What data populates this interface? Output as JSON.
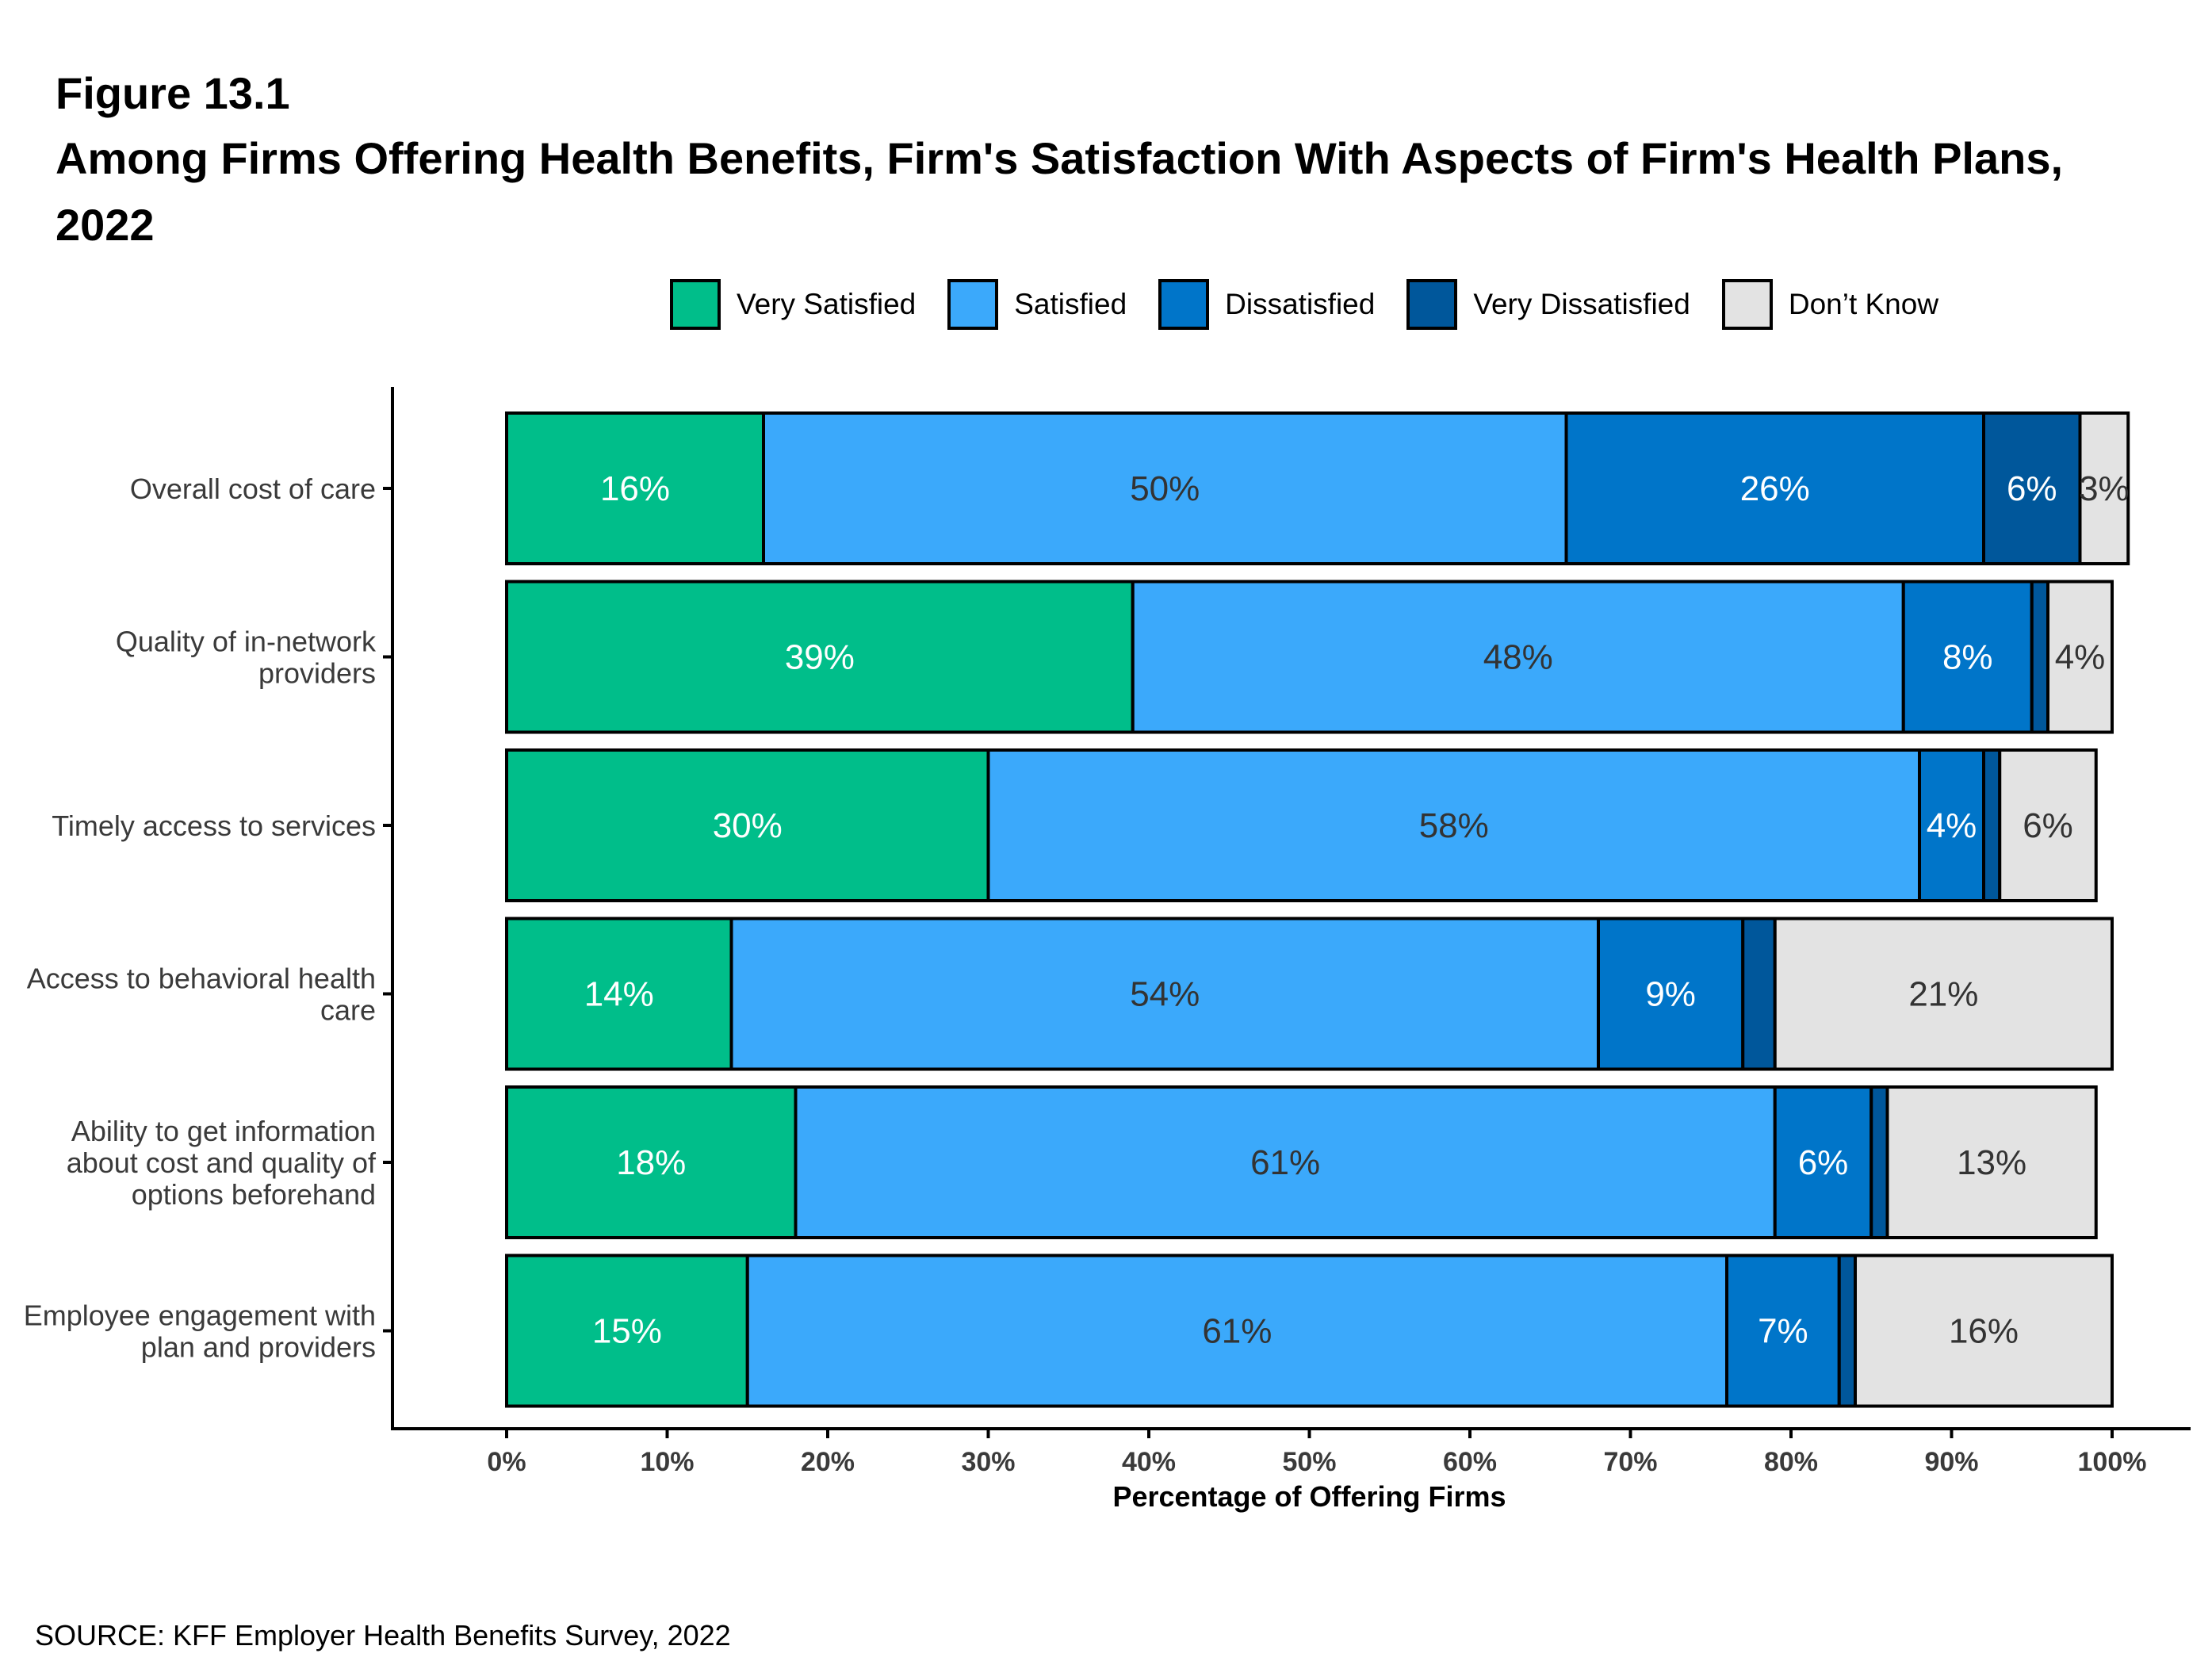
{
  "figure_label": "Figure 13.1",
  "title": "Among Firms Offering Health Benefits, Firm's Satisfaction With Aspects of Firm's Health Plans, 2022",
  "source": "SOURCE: KFF Employer Health Benefits Survey, 2022",
  "chart_data": {
    "type": "bar",
    "orientation": "horizontal",
    "stacked": true,
    "categories": [
      "Overall cost of care",
      "Quality of in-network providers",
      "Timely access to services",
      "Access to behavioral health care",
      "Ability to get information about cost and quality of options beforehand",
      "Employee engagement with plan and providers"
    ],
    "category_label_lines": [
      [
        "Overall cost of care"
      ],
      [
        "Quality of in-network",
        "providers"
      ],
      [
        "Timely access to services"
      ],
      [
        "Access to behavioral health",
        "care"
      ],
      [
        "Ability to get information",
        "about cost and quality of",
        "options beforehand"
      ],
      [
        "Employee engagement with",
        "plan and providers"
      ]
    ],
    "series": [
      {
        "name": "Very Satisfied",
        "color": "#00BE8A",
        "label_color": "#ffffff",
        "values": [
          16,
          39,
          30,
          14,
          18,
          15
        ],
        "labels": [
          "16%",
          "39%",
          "30%",
          "14%",
          "18%",
          "15%"
        ]
      },
      {
        "name": "Satisfied",
        "color": "#3BA9FB",
        "label_color": "#333333",
        "values": [
          50,
          48,
          58,
          54,
          61,
          61
        ],
        "labels": [
          "50%",
          "48%",
          "58%",
          "54%",
          "61%",
          "61%"
        ]
      },
      {
        "name": "Dissatisfied",
        "color": "#0075C9",
        "label_color": "#ffffff",
        "values": [
          26,
          8,
          4,
          9,
          6,
          7
        ],
        "labels": [
          "26%",
          "8%",
          "4%",
          "9%",
          "6%",
          "7%"
        ]
      },
      {
        "name": "Very Dissatisfied",
        "color": "#00579B",
        "label_color": "#ffffff",
        "values": [
          6,
          1,
          1,
          2,
          1,
          1
        ],
        "labels": [
          "6%",
          "",
          "",
          "",
          "",
          ""
        ]
      },
      {
        "name": "Don’t Know",
        "color": "#E3E3E3",
        "label_color": "#333333",
        "values": [
          3,
          4,
          6,
          21,
          13,
          16
        ],
        "labels": [
          "3%",
          "4%",
          "6%",
          "21%",
          "13%",
          "16%"
        ]
      }
    ],
    "xlim": [
      0,
      100
    ],
    "xticks": [
      0,
      10,
      20,
      30,
      40,
      50,
      60,
      70,
      80,
      90,
      100
    ],
    "xtick_labels": [
      "0%",
      "10%",
      "20%",
      "30%",
      "40%",
      "50%",
      "60%",
      "70%",
      "80%",
      "90%",
      "100%"
    ],
    "xlabel": "Percentage of Offering Firms",
    "ylabel": "",
    "legend_position": "top",
    "grid": false
  }
}
